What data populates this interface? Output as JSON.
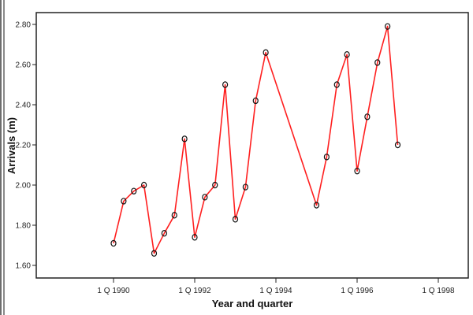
{
  "chart_data": {
    "type": "line",
    "title": "",
    "xlabel": "Year and quarter",
    "ylabel": "Arrivals (m)",
    "ylim": [
      1.54,
      2.86
    ],
    "yticks": [
      "1.60",
      "1.80",
      "2.00",
      "2.20",
      "2.40",
      "2.60",
      "2.80"
    ],
    "xticks": [
      "1 Q 1990",
      "1 Q 1992",
      "1 Q 1994",
      "1 Q 1996",
      "1 Q 1998"
    ],
    "grid": false,
    "legend": null,
    "series": [
      {
        "name": "Arrivals (m)",
        "color": "#ff2020",
        "marker": "circle",
        "points": [
          {
            "x": "1 Q 1990",
            "t": 1990.0,
            "y": 1.71
          },
          {
            "x": "2 Q 1990",
            "t": 1990.25,
            "y": 1.92
          },
          {
            "x": "3 Q 1990",
            "t": 1990.5,
            "y": 1.97
          },
          {
            "x": "4 Q 1990",
            "t": 1990.75,
            "y": 2.0
          },
          {
            "x": "1 Q 1991",
            "t": 1991.0,
            "y": 1.66
          },
          {
            "x": "2 Q 1991",
            "t": 1991.25,
            "y": 1.76
          },
          {
            "x": "3 Q 1991",
            "t": 1991.5,
            "y": 1.85
          },
          {
            "x": "4 Q 1991",
            "t": 1991.75,
            "y": 2.23
          },
          {
            "x": "1 Q 1992",
            "t": 1992.0,
            "y": 1.74
          },
          {
            "x": "2 Q 1992",
            "t": 1992.25,
            "y": 1.94
          },
          {
            "x": "3 Q 1992",
            "t": 1992.5,
            "y": 2.0
          },
          {
            "x": "4 Q 1992",
            "t": 1992.75,
            "y": 2.5
          },
          {
            "x": "1 Q 1993",
            "t": 1993.0,
            "y": 1.83
          },
          {
            "x": "2 Q 1993",
            "t": 1993.25,
            "y": 1.99
          },
          {
            "x": "3 Q 1993",
            "t": 1993.5,
            "y": 2.42
          },
          {
            "x": "4 Q 1993",
            "t": 1993.75,
            "y": 2.66
          },
          {
            "x": "1 Q 1995",
            "t": 1995.0,
            "y": 1.9
          },
          {
            "x": "2 Q 1995",
            "t": 1995.25,
            "y": 2.14
          },
          {
            "x": "3 Q 1995",
            "t": 1995.5,
            "y": 2.5
          },
          {
            "x": "4 Q 1995",
            "t": 1995.75,
            "y": 2.65
          },
          {
            "x": "1 Q 1996",
            "t": 1996.0,
            "y": 2.07
          },
          {
            "x": "2 Q 1996",
            "t": 1996.25,
            "y": 2.34
          },
          {
            "x": "3 Q 1996",
            "t": 1996.5,
            "y": 2.61
          },
          {
            "x": "4 Q 1996",
            "t": 1996.75,
            "y": 2.79
          },
          {
            "x": "1 Q 1997",
            "t": 1997.0,
            "y": 2.2
          }
        ]
      }
    ]
  },
  "layout_colors": {
    "line": "#ff2020",
    "marker_stroke": "#111111",
    "axis": "#222222"
  }
}
